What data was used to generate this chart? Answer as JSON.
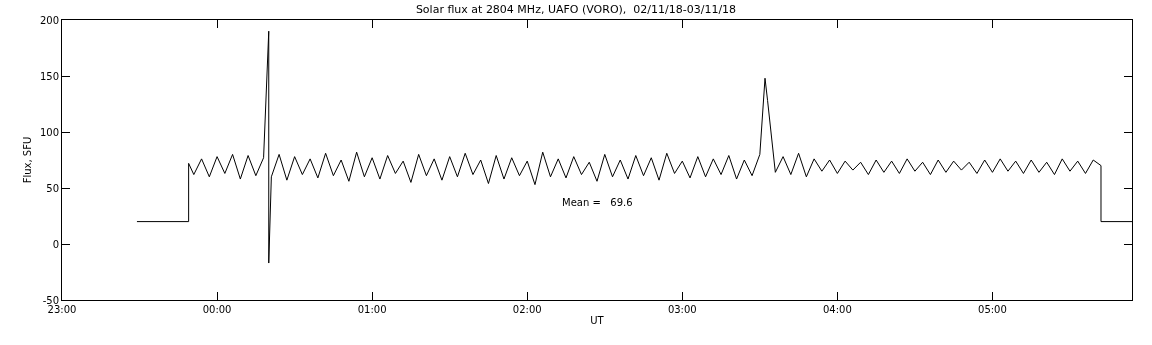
{
  "chart_data": {
    "type": "line",
    "title": "Solar flux at 2804 MHz, UAFO (VORO),  02/11/18-03/11/18",
    "xlabel": "UT",
    "ylabel": "Flux, SFU",
    "annotations": [
      "Mean =   69.6"
    ],
    "xlim": [
      "--11-02T23:00",
      "--11-03T05:54"
    ],
    "xticks": [
      {
        "value": "--11-02T23:00",
        "label": "23:00"
      },
      {
        "value": "--11-03T00:00",
        "label": "00:00"
      },
      {
        "value": "--11-03T01:00",
        "label": "01:00"
      },
      {
        "value": "--11-03T02:00",
        "label": "02:00"
      },
      {
        "value": "--11-03T03:00",
        "label": "03:00"
      },
      {
        "value": "--11-03T04:00",
        "label": "04:00"
      },
      {
        "value": "--11-03T05:00",
        "label": "05:00"
      }
    ],
    "ylim": [
      -50,
      200
    ],
    "yticks": [
      -50,
      0,
      50,
      100,
      150,
      200
    ],
    "marker": "none",
    "line_style": "solid",
    "series": [
      {
        "color": "#000000",
        "x": [
          "--11-02T23:29",
          "--11-02T23:49",
          "--11-02T23:49",
          "--11-02T23:51",
          "--11-02T23:54",
          "--11-02T23:57",
          "--11-03T00:00",
          "--11-03T00:03",
          "--11-03T00:06",
          "--11-03T00:09",
          "--11-03T00:12",
          "--11-03T00:15",
          "--11-03T00:18",
          "--11-03T00:20",
          "--11-03T00:20",
          "--11-03T00:21",
          "--11-03T00:24",
          "--11-03T00:27",
          "--11-03T00:30",
          "--11-03T00:33",
          "--11-03T00:36",
          "--11-03T00:39",
          "--11-03T00:42",
          "--11-03T00:45",
          "--11-03T00:48",
          "--11-03T00:51",
          "--11-03T00:54",
          "--11-03T00:57",
          "--11-03T01:00",
          "--11-03T01:03",
          "--11-03T01:06",
          "--11-03T01:09",
          "--11-03T01:12",
          "--11-03T01:15",
          "--11-03T01:18",
          "--11-03T01:21",
          "--11-03T01:24",
          "--11-03T01:27",
          "--11-03T01:30",
          "--11-03T01:33",
          "--11-03T01:36",
          "--11-03T01:39",
          "--11-03T01:42",
          "--11-03T01:45",
          "--11-03T01:48",
          "--11-03T01:51",
          "--11-03T01:54",
          "--11-03T01:57",
          "--11-03T02:00",
          "--11-03T02:03",
          "--11-03T02:06",
          "--11-03T02:09",
          "--11-03T02:12",
          "--11-03T02:15",
          "--11-03T02:18",
          "--11-03T02:21",
          "--11-03T02:24",
          "--11-03T02:27",
          "--11-03T02:30",
          "--11-03T02:33",
          "--11-03T02:36",
          "--11-03T02:39",
          "--11-03T02:42",
          "--11-03T02:45",
          "--11-03T02:48",
          "--11-03T02:51",
          "--11-03T02:54",
          "--11-03T02:57",
          "--11-03T03:00",
          "--11-03T03:03",
          "--11-03T03:06",
          "--11-03T03:09",
          "--11-03T03:12",
          "--11-03T03:15",
          "--11-03T03:18",
          "--11-03T03:21",
          "--11-03T03:24",
          "--11-03T03:27",
          "--11-03T03:30",
          "--11-03T03:32",
          "--11-03T03:33",
          "--11-03T03:36",
          "--11-03T03:39",
          "--11-03T03:42",
          "--11-03T03:45",
          "--11-03T03:48",
          "--11-03T03:51",
          "--11-03T03:54",
          "--11-03T03:57",
          "--11-03T04:00",
          "--11-03T04:03",
          "--11-03T04:06",
          "--11-03T04:09",
          "--11-03T04:12",
          "--11-03T04:15",
          "--11-03T04:18",
          "--11-03T04:21",
          "--11-03T04:24",
          "--11-03T04:27",
          "--11-03T04:30",
          "--11-03T04:33",
          "--11-03T04:36",
          "--11-03T04:39",
          "--11-03T04:42",
          "--11-03T04:45",
          "--11-03T04:48",
          "--11-03T04:51",
          "--11-03T04:54",
          "--11-03T04:57",
          "--11-03T05:00",
          "--11-03T05:03",
          "--11-03T05:06",
          "--11-03T05:09",
          "--11-03T05:12",
          "--11-03T05:15",
          "--11-03T05:18",
          "--11-03T05:21",
          "--11-03T05:24",
          "--11-03T05:27",
          "--11-03T05:30",
          "--11-03T05:33",
          "--11-03T05:36",
          "--11-03T05:39",
          "--11-03T05:42",
          "--11-03T05:42",
          "--11-03T05:54"
        ],
        "values": [
          20,
          20,
          72,
          62,
          76,
          60,
          78,
          63,
          80,
          58,
          79,
          61,
          77,
          190,
          -17,
          60,
          80,
          57,
          78,
          62,
          76,
          59,
          81,
          61,
          75,
          56,
          82,
          60,
          77,
          58,
          79,
          63,
          74,
          55,
          80,
          61,
          76,
          57,
          78,
          60,
          81,
          62,
          75,
          54,
          79,
          58,
          77,
          61,
          74,
          53,
          82,
          60,
          76,
          59,
          78,
          62,
          73,
          56,
          80,
          60,
          75,
          58,
          79,
          61,
          77,
          57,
          81,
          63,
          74,
          59,
          78,
          60,
          76,
          62,
          79,
          58,
          75,
          61,
          80,
          148,
          128,
          64,
          78,
          62,
          81,
          60,
          76,
          65,
          75,
          63,
          74,
          66,
          73,
          62,
          75,
          64,
          74,
          63,
          76,
          65,
          73,
          62,
          75,
          64,
          74,
          66,
          73,
          63,
          75,
          64,
          76,
          65,
          74,
          63,
          75,
          64,
          73,
          62,
          76,
          65,
          74,
          63,
          75,
          70,
          20,
          20
        ]
      }
    ]
  }
}
